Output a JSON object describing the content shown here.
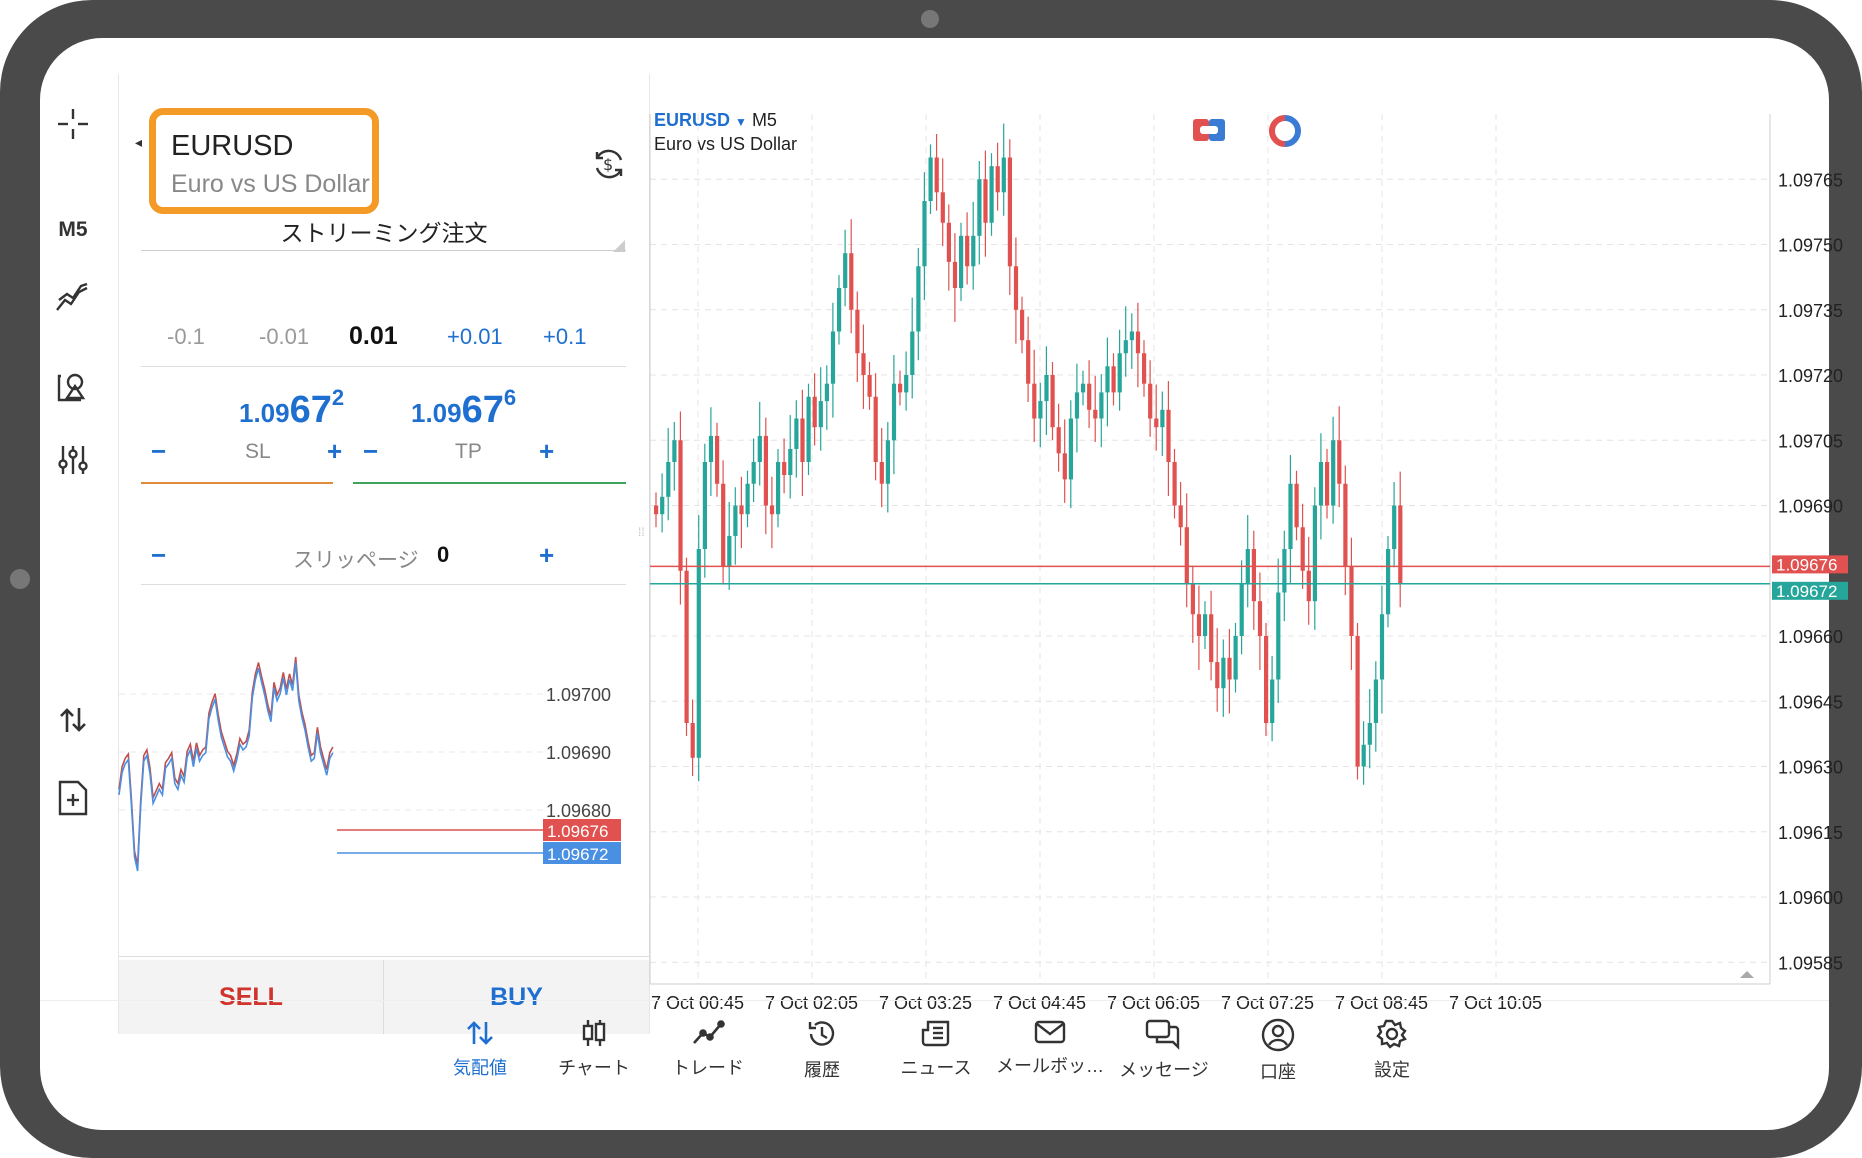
{
  "toolbar": {
    "timeframe": "M5"
  },
  "order_panel": {
    "symbol": "EURUSD",
    "symbol_description": "Euro vs US Dollar",
    "order_type": "ストリーミング注文",
    "volume_steps": [
      "-0.1",
      "-0.01",
      "0.01",
      "+0.01",
      "+0.1"
    ],
    "bid": {
      "prefix": "1.09",
      "big": "67",
      "small": "2"
    },
    "ask": {
      "prefix": "1.09",
      "big": "67",
      "small": "6"
    },
    "sl_label": "SL",
    "tp_label": "TP",
    "slippage_label": "スリッページ",
    "slippage_value": "0",
    "minus": "−",
    "plus": "+",
    "sell_label": "SELL",
    "buy_label": "BUY",
    "colors": {
      "sell": "#d0342c",
      "buy": "#1f6fd1",
      "sl_line": "#e08a3c",
      "tp_line": "#3ea35c"
    }
  },
  "mini_chart": {
    "price_labels": [
      "1.09700",
      "1.09690",
      "1.09680"
    ],
    "ask_label": "1.09676",
    "bid_label": "1.09672"
  },
  "chart": {
    "symbol": "EURUSD",
    "timeframe": "M5",
    "description": "Euro vs US Dollar",
    "price_labels": [
      "1.09765",
      "1.09750",
      "1.09735",
      "1.09720",
      "1.09705",
      "1.09690",
      "1.09660",
      "1.09645",
      "1.09630",
      "1.09615",
      "1.09600",
      "1.09585"
    ],
    "ask_label": "1.09676",
    "bid_label": "1.09672",
    "time_labels": [
      "7 Oct 00:45",
      "7 Oct 02:05",
      "7 Oct 03:25",
      "7 Oct 04:45",
      "7 Oct 06:05",
      "7 Oct 07:25",
      "7 Oct 08:45",
      "7 Oct 10:05"
    ],
    "colors": {
      "up": "#26a69a",
      "down": "#e0514f",
      "ask": "#e0514f",
      "bid": "#26a69a"
    }
  },
  "chart_data": {
    "type": "candlestick",
    "symbol": "EURUSD",
    "timeframe": "M5",
    "ylim": [
      1.0958,
      1.0978
    ],
    "x_tick_labels": [
      "7 Oct 00:45",
      "7 Oct 02:05",
      "7 Oct 03:25",
      "7 Oct 04:45",
      "7 Oct 06:05",
      "7 Oct 07:25",
      "7 Oct 08:45",
      "7 Oct 10:05"
    ],
    "ask": 1.09676,
    "bid": 1.09672,
    "closes": [
      1.09688,
      1.09692,
      1.097,
      1.09705,
      1.09675,
      1.0964,
      1.09632,
      1.0968,
      1.097,
      1.09706,
      1.09695,
      1.09676,
      1.09683,
      1.0969,
      1.09688,
      1.09695,
      1.097,
      1.09706,
      1.0969,
      1.09688,
      1.097,
      1.09697,
      1.09703,
      1.0971,
      1.097,
      1.09715,
      1.09708,
      1.09714,
      1.09718,
      1.0973,
      1.0974,
      1.09748,
      1.09735,
      1.09725,
      1.0972,
      1.09715,
      1.097,
      1.09695,
      1.09705,
      1.09718,
      1.09716,
      1.0972,
      1.0973,
      1.09745,
      1.0976,
      1.0977,
      1.09762,
      1.09755,
      1.09746,
      1.0974,
      1.09752,
      1.09745,
      1.09752,
      1.09765,
      1.09755,
      1.09768,
      1.09762,
      1.0977,
      1.09745,
      1.09735,
      1.09728,
      1.09718,
      1.0971,
      1.09714,
      1.0972,
      1.09708,
      1.09702,
      1.09696,
      1.0971,
      1.09716,
      1.09718,
      1.09712,
      1.0971,
      1.09716,
      1.09722,
      1.09716,
      1.09725,
      1.09728,
      1.0973,
      1.09725,
      1.09718,
      1.0971,
      1.09708,
      1.09712,
      1.097,
      1.0969,
      1.09685,
      1.09672,
      1.09665,
      1.0966,
      1.09665,
      1.09654,
      1.09648,
      1.09655,
      1.0965,
      1.0966,
      1.09672,
      1.0968,
      1.09668,
      1.0966,
      1.0964,
      1.0965,
      1.0967,
      1.0968,
      1.09695,
      1.09685,
      1.09675,
      1.09668,
      1.0969,
      1.097,
      1.0969,
      1.09705,
      1.09695,
      1.09676,
      1.0966,
      1.0963,
      1.09635,
      1.0964,
      1.0965,
      1.09665,
      1.0968,
      1.0969,
      1.09672
    ]
  }
}
